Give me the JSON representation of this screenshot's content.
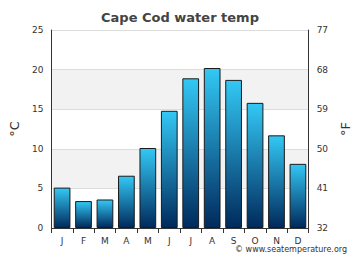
{
  "chart_data": {
    "type": "bar",
    "title": "Cape Cod water temp",
    "categories": [
      "J",
      "F",
      "M",
      "A",
      "M",
      "J",
      "J",
      "A",
      "S",
      "O",
      "N",
      "D"
    ],
    "values": [
      5.1,
      3.4,
      3.6,
      6.6,
      10.1,
      14.8,
      18.9,
      20.2,
      18.7,
      15.8,
      11.7,
      8.1
    ],
    "color": "#33c8f5",
    "ylabel": "°C",
    "y2label": "°F",
    "ylim": [
      0,
      25
    ],
    "yticks": [
      0,
      5,
      10,
      15,
      20,
      25
    ],
    "y2lim": [
      32,
      77
    ],
    "y2ticks": [
      32,
      41,
      50,
      59,
      68,
      77
    ],
    "grid": true,
    "annotations": [
      "© www.seatemperature.org"
    ]
  }
}
